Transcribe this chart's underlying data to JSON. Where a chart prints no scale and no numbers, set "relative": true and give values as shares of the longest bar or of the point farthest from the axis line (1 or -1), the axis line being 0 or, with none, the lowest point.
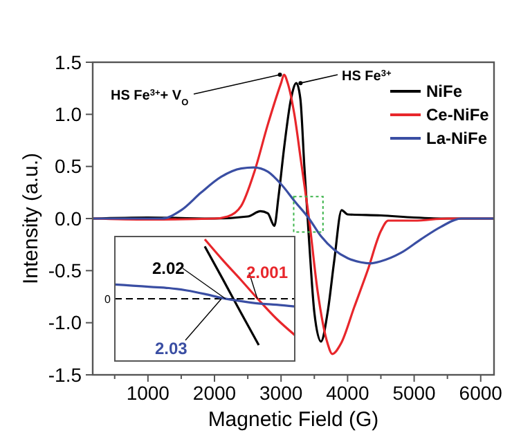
{
  "chart_data": [
    {
      "type": "line",
      "xlabel": "Magnetic Field (G)",
      "ylabel": "Intensity (a.u.)",
      "xlim": [
        170,
        6200
      ],
      "ylim": [
        -1.5,
        1.5
      ],
      "xticks": [
        {
          "value": 500,
          "label": null
        },
        1000,
        {
          "value": 1500,
          "label": null
        },
        2000,
        {
          "value": 2500,
          "label": null
        },
        3000,
        {
          "value": 3500,
          "label": null
        },
        4000,
        {
          "value": 4500,
          "label": null
        },
        5000,
        {
          "value": 5500,
          "label": null
        },
        6000
      ],
      "yticks": [
        {
          "value": -1.5,
          "label": "-1.5"
        },
        {
          "value": -1,
          "label": "-1.0"
        },
        {
          "value": -0.5,
          "label": "-0.5"
        },
        {
          "value": 0,
          "label": "0.0"
        },
        {
          "value": 0.5,
          "label": "0.5"
        },
        {
          "value": 1,
          "label": "1.0"
        },
        {
          "value": 1.5,
          "label": "1.5"
        }
      ],
      "legend": "top right",
      "grid": false,
      "marker": "none",
      "line_style": "solid",
      "series": [
        {
          "name": "NiFe",
          "color": "#000000",
          "x": [
            170,
            1000,
            2000,
            2500,
            2690,
            2800,
            2900,
            2960,
            3050,
            3150,
            3230,
            3290,
            3350,
            3420,
            3500,
            3600,
            3700,
            3800,
            3910,
            4000,
            4500,
            5000,
            5500,
            6200
          ],
          "values": [
            0,
            0.01,
            0,
            0.02,
            0.07,
            0.05,
            -0.07,
            0.2,
            0.7,
            1.15,
            1.3,
            1.15,
            0.5,
            -0.2,
            -0.9,
            -1.18,
            -0.9,
            -0.4,
            0.08,
            0.04,
            0.03,
            0.01,
            0,
            0
          ]
        },
        {
          "name": "Ce-NiFe",
          "color": "#e8262b",
          "x": [
            170,
            1000,
            2000,
            2200,
            2400,
            2600,
            2800,
            3000,
            3045,
            3100,
            3200,
            3300,
            3420,
            3550,
            3700,
            3770,
            3900,
            4100,
            4300,
            4500,
            4610,
            5000,
            5500,
            6200
          ],
          "values": [
            0,
            -0.01,
            0,
            0.02,
            0.12,
            0.45,
            0.9,
            1.3,
            1.38,
            1.3,
            1,
            0.55,
            0,
            -0.7,
            -1.2,
            -1.3,
            -1.2,
            -0.85,
            -0.5,
            -0.12,
            -0.02,
            -0.02,
            0,
            0
          ]
        },
        {
          "name": "La-NiFe",
          "color": "#3a4ea3",
          "x": [
            170,
            1000,
            1210,
            1500,
            1800,
            2100,
            2400,
            2590,
            2800,
            3000,
            3200,
            3420,
            3600,
            3800,
            4000,
            4200,
            4340,
            4500,
            4800,
            5100,
            5400,
            5710,
            6000,
            6200
          ],
          "values": [
            0,
            0,
            0,
            0.08,
            0.25,
            0.4,
            0.48,
            0.49,
            0.45,
            0.33,
            0.17,
            0,
            -0.17,
            -0.3,
            -0.38,
            -0.42,
            -0.43,
            -0.41,
            -0.33,
            -0.2,
            -0.08,
            0,
            0,
            0
          ]
        }
      ],
      "annotations": [
        {
          "text": "HS Fe$^{3+}$+ V$_{O}$",
          "x": 3045,
          "y": 1.38
        },
        {
          "text": "HS Fe$^{3+}$",
          "x": 3230,
          "y": 1.3
        }
      ]
    },
    {
      "type": "line",
      "relative": true,
      "categories": [
        null,
        null,
        null,
        null,
        null,
        null,
        null,
        null,
        null,
        null,
        null
      ],
      "ref_lines": [
        {
          "axis": "y",
          "value": 0,
          "label": "0",
          "line_style": "dashed",
          "color": "#000000"
        }
      ],
      "series": [
        {
          "color": "#000000",
          "values": [
            null,
            null,
            null,
            null,
            null,
            0.88,
            0.33,
            -0.23,
            -0.78,
            null,
            null
          ]
        },
        {
          "color": "#e8262b",
          "values": [
            null,
            null,
            null,
            null,
            null,
            1,
            0.65,
            0.32,
            -0.02,
            -0.34,
            -0.61
          ]
        },
        {
          "color": "#3a4ea3",
          "values": [
            0.24,
            0.22,
            0.2,
            0.18,
            0.14,
            0.08,
            0.01,
            -0.04,
            -0.08,
            -0.1,
            -0.13
          ]
        }
      ],
      "annotations": [
        "2.02",
        "2.001",
        "2.03"
      ]
    }
  ]
}
